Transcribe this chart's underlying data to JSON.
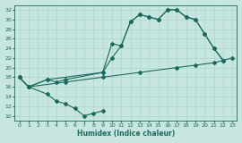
{
  "xlabel": "Humidex (Indice chaleur)",
  "xlim": [
    -0.5,
    23.5
  ],
  "ylim": [
    9,
    33
  ],
  "yticks": [
    10,
    12,
    14,
    16,
    18,
    20,
    22,
    24,
    26,
    28,
    30,
    32
  ],
  "xticks": [
    0,
    1,
    2,
    3,
    4,
    5,
    6,
    7,
    8,
    9,
    10,
    11,
    12,
    13,
    14,
    15,
    16,
    17,
    18,
    19,
    20,
    21,
    22,
    23
  ],
  "bg_color": "#c8e6e0",
  "line_color": "#1a6b5e",
  "grid_color": "#b0d8d0",
  "line1": [
    [
      0,
      18
    ],
    [
      1,
      16
    ],
    [
      3,
      14.5
    ],
    [
      4,
      13
    ],
    [
      5,
      12.5
    ],
    [
      6,
      11.5
    ],
    [
      7,
      10
    ],
    [
      8,
      10.5
    ],
    [
      9,
      11
    ]
  ],
  "line2": [
    [
      0,
      18
    ],
    [
      1,
      16
    ],
    [
      3,
      17.5
    ],
    [
      4,
      17
    ],
    [
      5,
      17.5
    ],
    [
      9,
      19
    ],
    [
      10,
      22
    ],
    [
      11,
      24.5
    ],
    [
      12,
      29.5
    ],
    [
      13,
      31
    ],
    [
      14,
      30.5
    ],
    [
      15,
      30
    ],
    [
      16,
      32
    ],
    [
      17,
      32
    ],
    [
      18,
      30.5
    ],
    [
      19,
      30
    ],
    [
      20,
      27
    ],
    [
      21,
      24
    ],
    [
      22,
      21.5
    ]
  ],
  "line3": [
    [
      0,
      18
    ],
    [
      1,
      16
    ],
    [
      3,
      17.5
    ],
    [
      9,
      19
    ],
    [
      10,
      25
    ],
    [
      11,
      24.5
    ],
    [
      12,
      29.5
    ],
    [
      13,
      31
    ],
    [
      14,
      30.5
    ],
    [
      15,
      30
    ],
    [
      16,
      32
    ],
    [
      17,
      32
    ],
    [
      18,
      30.5
    ],
    [
      19,
      30
    ],
    [
      20,
      27
    ],
    [
      21,
      24
    ],
    [
      22,
      21.5
    ]
  ],
  "line4": [
    [
      1,
      16
    ],
    [
      5,
      17
    ],
    [
      9,
      18
    ],
    [
      13,
      19
    ],
    [
      17,
      20
    ],
    [
      19,
      20.5
    ],
    [
      21,
      21
    ],
    [
      23,
      22
    ]
  ]
}
